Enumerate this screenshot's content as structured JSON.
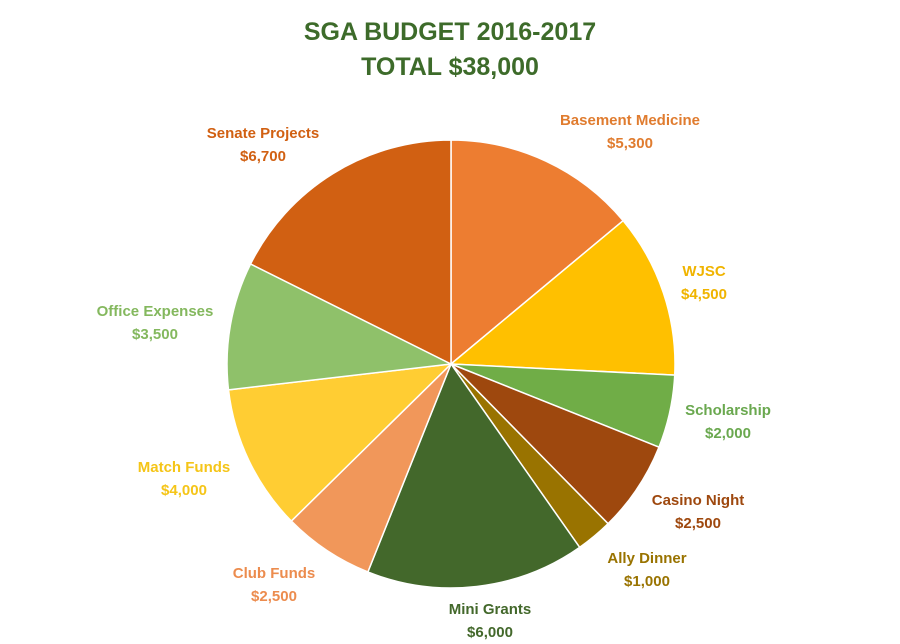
{
  "chart_data": {
    "type": "pie",
    "title": "SGA BUDGET 2016-2017",
    "subtitle": "TOTAL $38,000",
    "slices": [
      {
        "label": "Basement Medicine",
        "value": 5300,
        "value_label": "$5,300",
        "color": "#ed7d31",
        "label_color": "#e07c2f"
      },
      {
        "label": "WJSC",
        "value": 4500,
        "value_label": "$4,500",
        "color": "#ffc000",
        "label_color": "#f0b400"
      },
      {
        "label": "Scholarship",
        "value": 2000,
        "value_label": "$2,000",
        "color": "#70ad47",
        "label_color": "#6aa84f"
      },
      {
        "label": "Casino Night",
        "value": 2500,
        "value_label": "$2,500",
        "color": "#9e480e",
        "label_color": "#9e480e"
      },
      {
        "label": "Ally Dinner",
        "value": 1000,
        "value_label": "$1,000",
        "color": "#997300",
        "label_color": "#997300"
      },
      {
        "label": "Mini Grants",
        "value": 6000,
        "value_label": "$6,000",
        "color": "#43682b",
        "label_color": "#43682b"
      },
      {
        "label": "Club Funds",
        "value": 2500,
        "value_label": "$2,500",
        "color": "#f1975a",
        "label_color": "#ec8c4e"
      },
      {
        "label": "Match Funds",
        "value": 4000,
        "value_label": "$4,000",
        "color": "#ffcd33",
        "label_color": "#f5c518"
      },
      {
        "label": "Office Expenses",
        "value": 3500,
        "value_label": "$3,500",
        "color": "#8fc16a",
        "label_color": "#84b85e"
      },
      {
        "label": "Senate Projects",
        "value": 6700,
        "value_label": "$6,700",
        "color": "#d16012",
        "label_color": "#d16012"
      }
    ],
    "legend": "none"
  }
}
